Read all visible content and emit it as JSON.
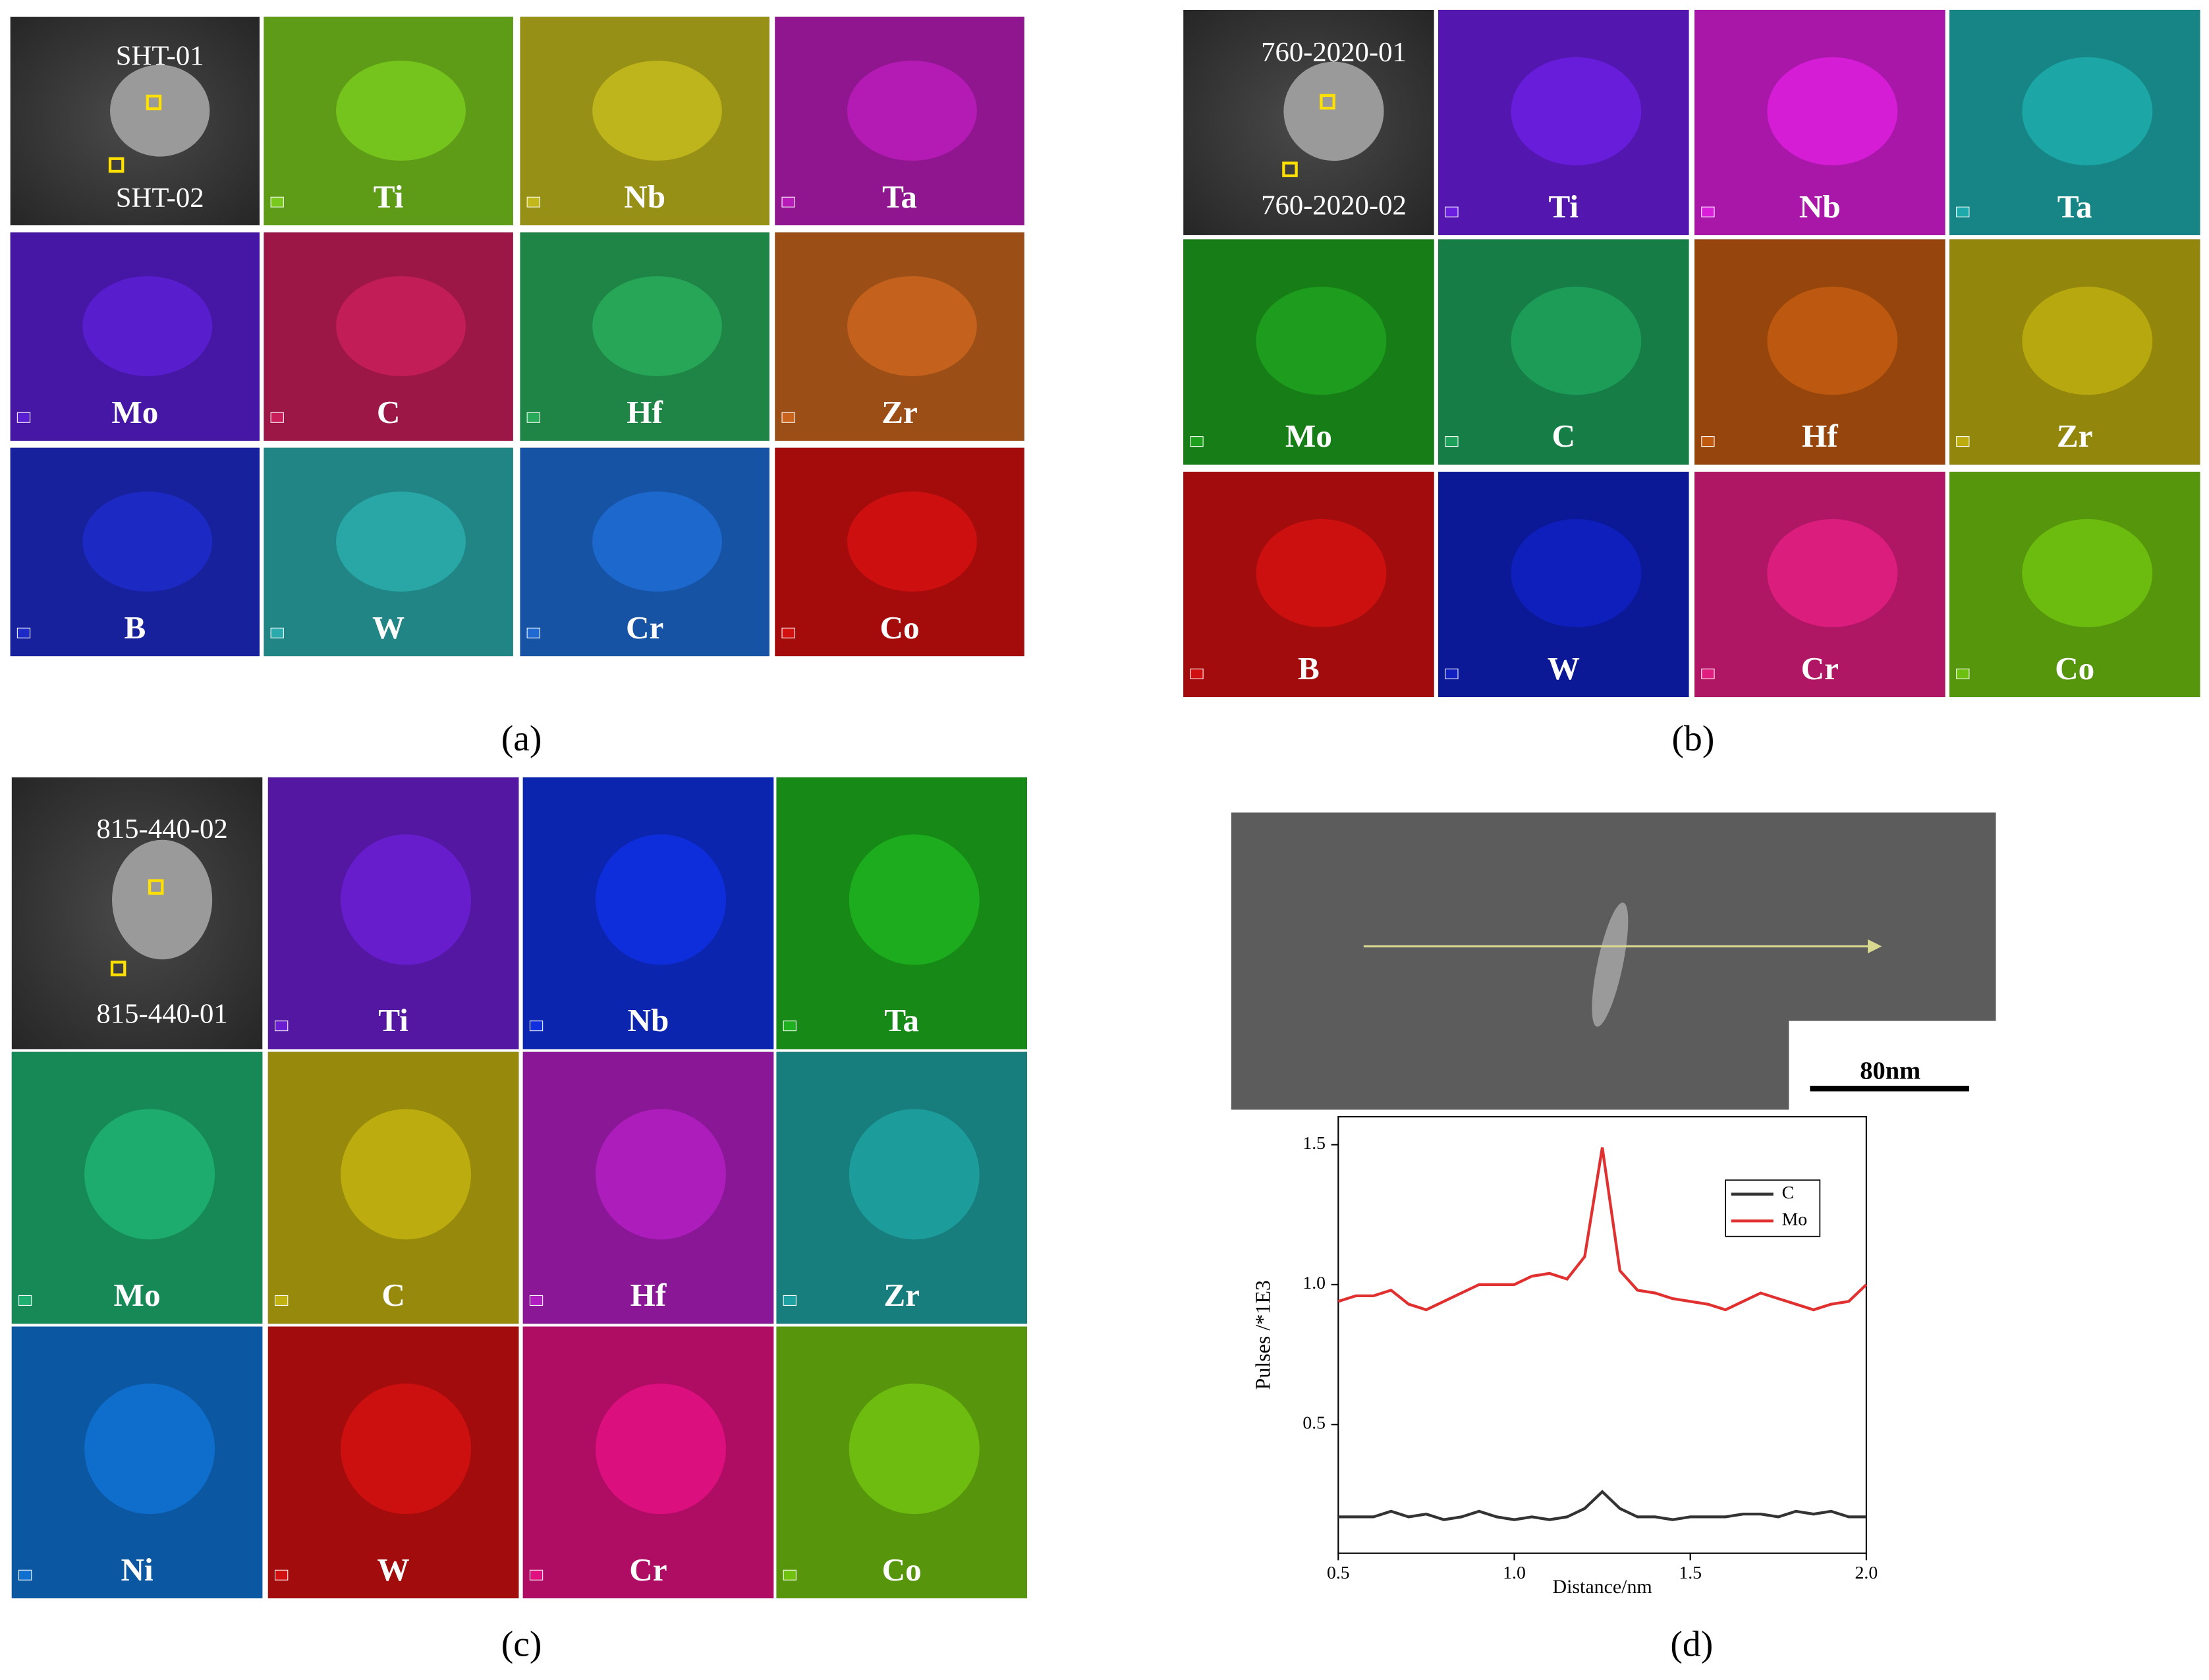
{
  "panels": [
    {
      "label": "(a)",
      "sem_labels": [
        "SHT-01",
        "SHT-02"
      ],
      "maps": [
        {
          "element": "Ti",
          "color": "#78c81e"
        },
        {
          "element": "Nb",
          "color": "#c2b81c"
        },
        {
          "element": "Ta",
          "color": "#b81cb8"
        },
        {
          "element": "Mo",
          "color": "#5a1ed2"
        },
        {
          "element": "C",
          "color": "#c81e5a"
        },
        {
          "element": "Hf",
          "color": "#28aa5a"
        },
        {
          "element": "Zr",
          "color": "#c8641e"
        },
        {
          "element": "B",
          "color": "#1e2ac8"
        },
        {
          "element": "W",
          "color": "#2aaaaa"
        },
        {
          "element": "Cr",
          "color": "#1e6ad2"
        },
        {
          "element": "Co",
          "color": "#d21010"
        }
      ]
    },
    {
      "label": "(b)",
      "sem_labels": [
        "760-2020-01",
        "760-2020-02"
      ],
      "maps": [
        {
          "element": "Ti",
          "color": "#6a1ee0"
        },
        {
          "element": "Nb",
          "color": "#d81ed8"
        },
        {
          "element": "Ta",
          "color": "#1eaaaa"
        },
        {
          "element": "Mo",
          "color": "#1ea01e"
        },
        {
          "element": "C",
          "color": "#1ea05a"
        },
        {
          "element": "Hf",
          "color": "#c05a10"
        },
        {
          "element": "Zr",
          "color": "#bcac10"
        },
        {
          "element": "B",
          "color": "#d01010"
        },
        {
          "element": "W",
          "color": "#1020c0"
        },
        {
          "element": "Cr",
          "color": "#e01e80"
        },
        {
          "element": "Co",
          "color": "#6ec010"
        }
      ]
    },
    {
      "label": "(c)",
      "sem_labels": [
        "815-440-02",
        "815-440-01"
      ],
      "maps": [
        {
          "element": "Ti",
          "color": "#6a1ed0"
        },
        {
          "element": "Nb",
          "color": "#1030e0"
        },
        {
          "element": "Ta",
          "color": "#1eb01e"
        },
        {
          "element": "Mo",
          "color": "#1eb070"
        },
        {
          "element": "C",
          "color": "#c0b010"
        },
        {
          "element": "Hf",
          "color": "#b01ec0"
        },
        {
          "element": "Zr",
          "color": "#1ea0a0"
        },
        {
          "element": "Ni",
          "color": "#1070d0"
        },
        {
          "element": "W",
          "color": "#d01010"
        },
        {
          "element": "Cr",
          "color": "#e01080"
        },
        {
          "element": "Co",
          "color": "#70c010"
        }
      ]
    }
  ],
  "panel_d": {
    "label": "(d)",
    "scale_bar": "80nm"
  },
  "chart_data": {
    "type": "line",
    "xlabel": "Distance/nm",
    "ylabel": "Pulses /*1E3",
    "x": [
      0.5,
      0.55,
      0.6,
      0.65,
      0.7,
      0.75,
      0.8,
      0.85,
      0.9,
      0.95,
      1.0,
      1.05,
      1.1,
      1.15,
      1.2,
      1.25,
      1.3,
      1.35,
      1.4,
      1.45,
      1.5,
      1.55,
      1.6,
      1.65,
      1.7,
      1.75,
      1.8,
      1.85,
      1.9,
      1.95,
      2.0
    ],
    "series": [
      {
        "name": "C",
        "color": "#333333",
        "values": [
          0.17,
          0.17,
          0.17,
          0.19,
          0.17,
          0.18,
          0.16,
          0.17,
          0.19,
          0.17,
          0.16,
          0.17,
          0.16,
          0.17,
          0.2,
          0.26,
          0.2,
          0.17,
          0.17,
          0.16,
          0.17,
          0.17,
          0.17,
          0.18,
          0.18,
          0.17,
          0.19,
          0.18,
          0.19,
          0.17,
          0.17
        ]
      },
      {
        "name": "Mo",
        "color": "#e03030",
        "values": [
          0.94,
          0.96,
          0.96,
          0.98,
          0.93,
          0.91,
          0.94,
          0.97,
          1.0,
          1.0,
          1.0,
          1.03,
          1.04,
          1.02,
          1.1,
          1.49,
          1.05,
          0.98,
          0.97,
          0.95,
          0.94,
          0.93,
          0.91,
          0.94,
          0.97,
          0.95,
          0.93,
          0.91,
          0.93,
          0.94,
          1.0
        ]
      }
    ],
    "xlim": [
      0.5,
      2.0
    ],
    "ylim": [
      0.04,
      1.6
    ],
    "xticks": [
      0.5,
      {
        "value": 1,
        "label": "1.0"
      },
      1.5,
      {
        "value": 2,
        "label": "2.0"
      }
    ],
    "yticks": [
      0.5,
      {
        "value": 1,
        "label": "1.0"
      },
      1.5
    ],
    "legend": "upper right"
  }
}
